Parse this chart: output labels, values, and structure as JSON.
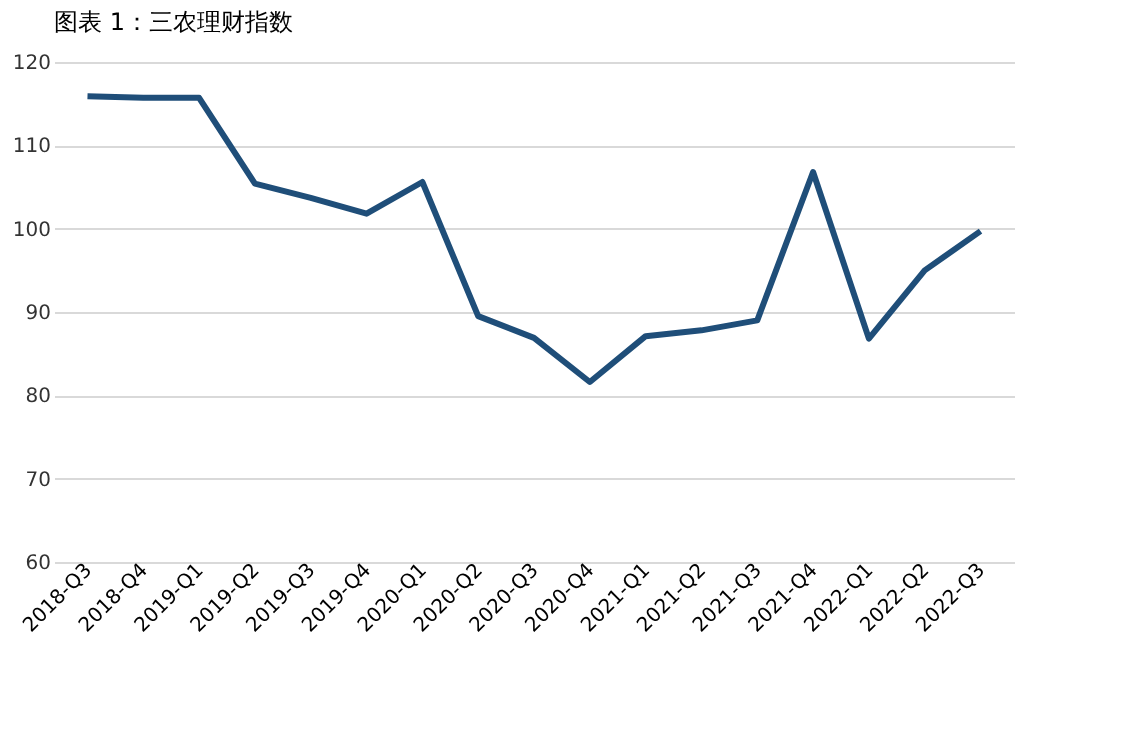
{
  "chart_data": {
    "type": "line",
    "title": "图表 1：三农理财指数",
    "categories": [
      "2018-Q3",
      "2018-Q4",
      "2019-Q1",
      "2019-Q2",
      "2019-Q3",
      "2019-Q4",
      "2020-Q1",
      "2020-Q2",
      "2020-Q3",
      "2020-Q4",
      "2021-Q1",
      "2021-Q2",
      "2021-Q3",
      "2021-Q4",
      "2022-Q1",
      "2022-Q2",
      "2022-Q3"
    ],
    "series": [
      {
        "color": "#1f4e79",
        "values": [
          115.9,
          115.7,
          115.7,
          105.4,
          103.7,
          101.8,
          105.6,
          89.5,
          86.9,
          81.6,
          87.1,
          87.8,
          89.0,
          106.8,
          86.8,
          95.0,
          99.7
        ]
      }
    ],
    "ylim": [
      60,
      120
    ],
    "yticks": [
      60,
      70,
      80,
      90,
      100,
      110,
      120
    ],
    "grid": "y",
    "marker": "none",
    "line_style": "solid"
  }
}
